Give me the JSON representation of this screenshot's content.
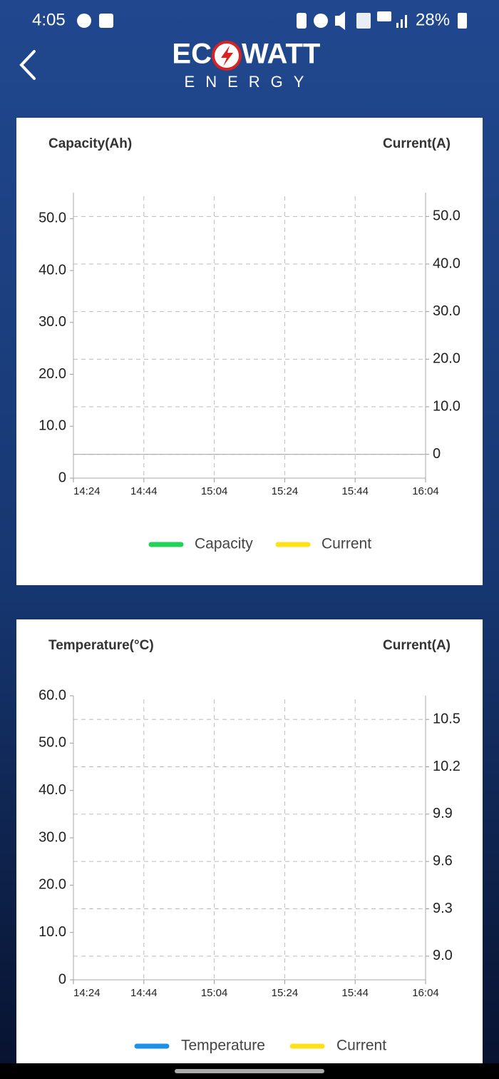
{
  "status_bar": {
    "time": "4:05",
    "battery": "28%"
  },
  "header": {
    "logo_left": "EC",
    "logo_right": "WATT",
    "logo_sub": "ENERGY"
  },
  "chart_data": [
    {
      "type": "line",
      "y_label": "Capacity(Ah)",
      "y2_label": "Current(A)",
      "categories": [
        "14:24",
        "14:44",
        "15:04",
        "15:24",
        "15:44",
        "16:04"
      ],
      "series": [
        {
          "name": "Capacity",
          "color": "#22d35a",
          "values": [
            null,
            null,
            null,
            null,
            null,
            null
          ]
        },
        {
          "name": "Current",
          "color": "#ffe11a",
          "axis": "y2",
          "values": [
            null,
            null,
            null,
            null,
            null,
            null
          ]
        }
      ],
      "ylim": [
        0,
        55
      ],
      "yticks": [
        0,
        {
          "value": 10,
          "label": "10.0"
        },
        {
          "value": 20,
          "label": "20.0"
        },
        {
          "value": 30,
          "label": "30.0"
        },
        {
          "value": 40,
          "label": "40.0"
        },
        {
          "value": 50,
          "label": "50.0"
        }
      ],
      "y2lim": [
        -5,
        55
      ],
      "y2ticks": [
        0,
        {
          "value": 10,
          "label": "10.0"
        },
        {
          "value": 20,
          "label": "20.0"
        },
        {
          "value": 30,
          "label": "30.0"
        },
        {
          "value": 40,
          "label": "40.0"
        },
        {
          "value": 50,
          "label": "50.0"
        }
      ],
      "grid": true
    },
    {
      "type": "line",
      "y_label": "Temperature(°C)",
      "y2_label": "Current(A)",
      "categories": [
        "14:24",
        "14:44",
        "15:04",
        "15:24",
        "15:44",
        "16:04"
      ],
      "series": [
        {
          "name": "Temperature",
          "color": "#1e90e8",
          "values": [
            null,
            null,
            null,
            null,
            null,
            null
          ]
        },
        {
          "name": "Current",
          "color": "#ffe11a",
          "axis": "y2",
          "values": [
            null,
            null,
            null,
            null,
            null,
            null
          ]
        }
      ],
      "ylim": [
        0,
        60
      ],
      "yticks": [
        0,
        {
          "value": 10,
          "label": "10.0"
        },
        {
          "value": 20,
          "label": "20.0"
        },
        {
          "value": 30,
          "label": "30.0"
        },
        {
          "value": 40,
          "label": "40.0"
        },
        {
          "value": 50,
          "label": "50.0"
        },
        {
          "value": 60,
          "label": "60.0"
        }
      ],
      "y2lim": [
        8.85,
        10.65
      ],
      "y2ticks": [
        {
          "value": 9,
          "label": "9.0"
        },
        9.3,
        9.6,
        9.9,
        10.2,
        10.5
      ],
      "grid": true
    }
  ]
}
